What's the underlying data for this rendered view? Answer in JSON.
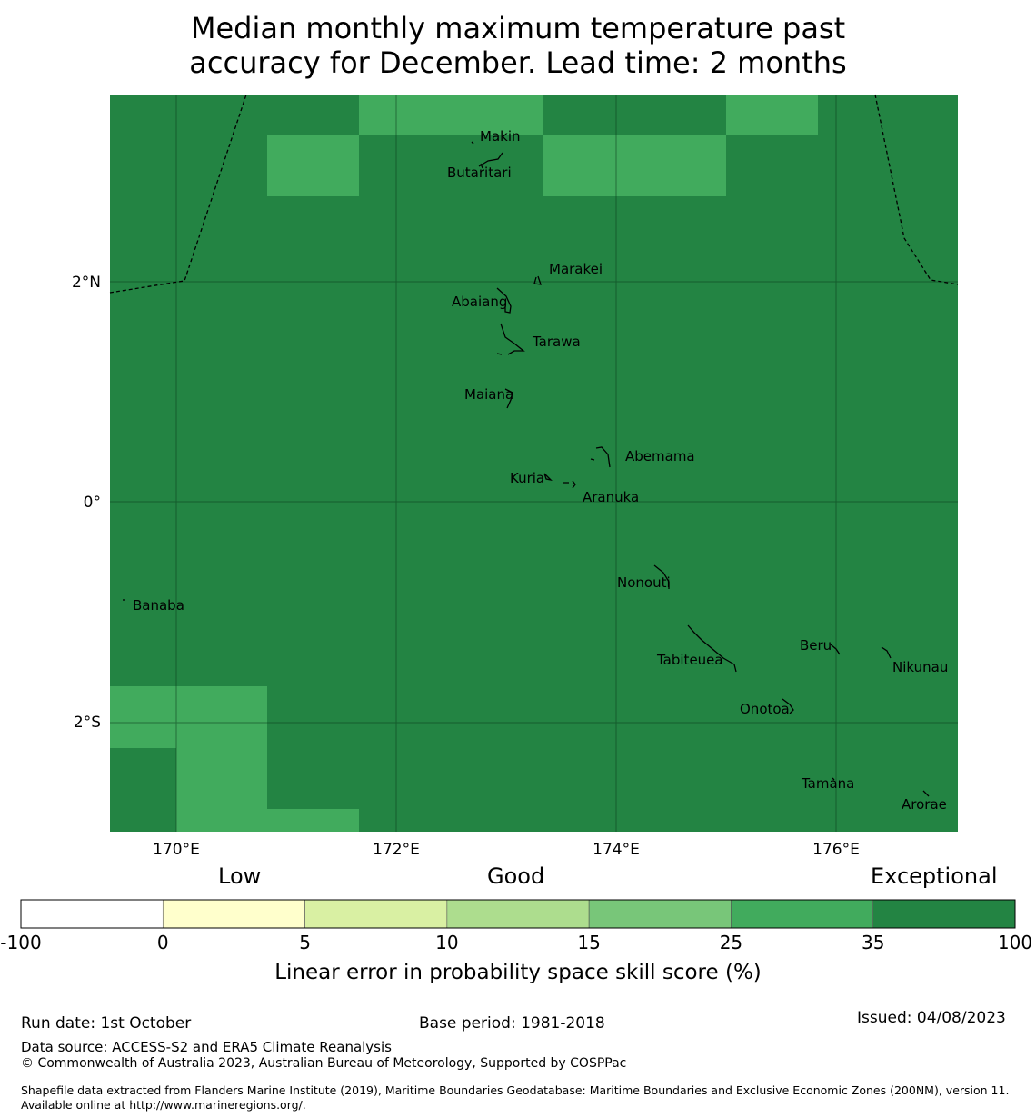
{
  "title_line1": "Median monthly maximum temperature past",
  "title_line2": "accuracy for December. Lead time: 2 months",
  "map": {
    "lat_ticks": [
      "2°N",
      "0°",
      "2°S"
    ],
    "lon_ticks": [
      "170°E",
      "172°E",
      "174°E",
      "176°E"
    ],
    "colors": {
      "base": "#238443",
      "light": "#41ab5d"
    },
    "islands": [
      {
        "name": "Makin"
      },
      {
        "name": "Butaritari"
      },
      {
        "name": "Marakei"
      },
      {
        "name": "Abaiang"
      },
      {
        "name": "Tarawa"
      },
      {
        "name": "Maiana"
      },
      {
        "name": "Abemama"
      },
      {
        "name": "Kuria"
      },
      {
        "name": "Aranuka"
      },
      {
        "name": "Banaba"
      },
      {
        "name": "Nonouti"
      },
      {
        "name": "Beru"
      },
      {
        "name": "Tabiteuea"
      },
      {
        "name": "Nikunau"
      },
      {
        "name": "Onotoa"
      },
      {
        "name": "Tamana"
      },
      {
        "name": "Arorae"
      }
    ]
  },
  "colorbar": {
    "categories": [
      "Low",
      "Good",
      "Exceptional"
    ],
    "ticks": [
      "-100",
      "0",
      "5",
      "10",
      "15",
      "25",
      "35",
      "100"
    ],
    "colors": [
      "#ffffff",
      "#ffffcc",
      "#d9f0a3",
      "#addd8e",
      "#78c679",
      "#41ab5d",
      "#238443"
    ],
    "label": "Linear error in probability space skill score (%)"
  },
  "footer": {
    "run_date": "Run date: 1st October",
    "base_period": "Base period: 1981-2018",
    "issued": "Issued: 04/08/2023",
    "data_source": "Data source: ACCESS-S2 and ERA5 Climate Reanalysis",
    "copyright": "© Commonwealth of Australia 2023, Australian Bureau of Meteorology, Supported by COSPPac",
    "shapefile": "Shapefile data extracted from Flanders Marine Institute (2019), Maritime Boundaries Geodatabase: Maritime Boundaries and Exclusive Economic Zones (200NM), version 11. Available online at http://www.marineregions.org/."
  }
}
